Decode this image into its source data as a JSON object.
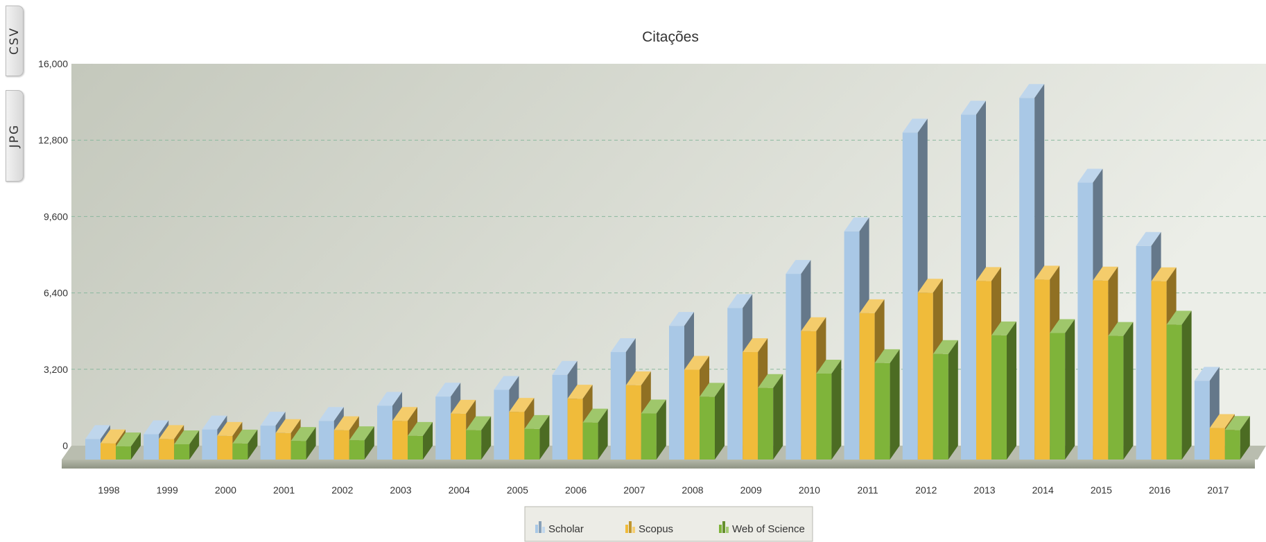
{
  "export_tabs": {
    "csv": "CSV",
    "jpg": "JPG"
  },
  "chart_data": {
    "type": "bar",
    "title": "Citações",
    "xlabel": "",
    "ylabel": "",
    "ylim": [
      0,
      16000
    ],
    "yticks": [
      "0",
      "3,200",
      "6,400",
      "9,600",
      "12,800",
      "16,000"
    ],
    "grid": true,
    "legend_position": "bottom",
    "categories": [
      "1998",
      "1999",
      "2000",
      "2001",
      "2002",
      "2003",
      "2004",
      "2005",
      "2006",
      "2007",
      "2008",
      "2009",
      "2010",
      "2011",
      "2012",
      "2013",
      "2014",
      "2015",
      "2016",
      "2017"
    ],
    "series": [
      {
        "name": "Scholar",
        "color": "#a9c8e6",
        "values": [
          860,
          1060,
          1260,
          1420,
          1620,
          2250,
          2640,
          2920,
          3550,
          4500,
          5600,
          6350,
          7780,
          9560,
          13700,
          14450,
          15150,
          11600,
          8950,
          3300
        ]
      },
      {
        "name": "Scopus",
        "color": "#f0bb3a",
        "values": [
          680,
          860,
          990,
          1110,
          1230,
          1620,
          1920,
          2000,
          2550,
          3110,
          3760,
          4500,
          5380,
          6130,
          6990,
          7480,
          7540,
          7500,
          7470,
          1320
        ]
      },
      {
        "name": "Web of Science",
        "color": "#7fb43a",
        "values": [
          550,
          640,
          670,
          780,
          810,
          990,
          1230,
          1280,
          1550,
          1930,
          2630,
          3000,
          3600,
          4040,
          4420,
          5200,
          5300,
          5180,
          5650,
          1240
        ]
      }
    ]
  },
  "colors": {
    "panel_top": "#c6cabf",
    "panel_bottom": "#e9ebe5",
    "grid": "#8ab89e",
    "floor": "#a8ad9e"
  }
}
